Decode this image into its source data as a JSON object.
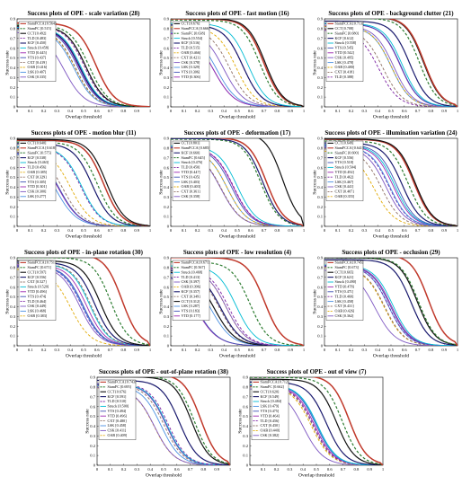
{
  "figure": {
    "xlabel": "Overlap threshold",
    "ylabel": "Success rate",
    "x_ticks": [
      "0",
      "0.1",
      "0.2",
      "0.3",
      "0.4",
      "0.5",
      "0.6",
      "0.7",
      "0.8",
      "0.9",
      "1"
    ],
    "y_ticks": [
      "0",
      "0.1",
      "0.2",
      "0.3",
      "0.4",
      "0.5",
      "0.6",
      "0.7",
      "0.8",
      "0.9"
    ]
  },
  "series_styles": {
    "SiamFCCA": {
      "color": "#c0392b",
      "dash": "solid",
      "width": 1.5
    },
    "SiamFC": {
      "color": "#2e7d32",
      "dash": "dashed",
      "width": 1.2
    },
    "CCT": {
      "color": "#111111",
      "dash": "solid",
      "width": 1.2
    },
    "TLD": {
      "color": "#7b1fa2",
      "dash": "dashed",
      "width": 0.9
    },
    "KCF": {
      "color": "#1a1a6e",
      "dash": "solid",
      "width": 1.2
    },
    "Struck": {
      "color": "#00bcd4",
      "dash": "solid",
      "width": 0.9
    },
    "VTD": {
      "color": "#9c27b0",
      "dash": "solid",
      "width": 0.9
    },
    "CXT": {
      "color": "#8d6e63",
      "dash": "dashed",
      "width": 0.9
    },
    "VTS": {
      "color": "#3f51b5",
      "dash": "solid",
      "width": 0.9
    },
    "OAB": {
      "color": "#e1a900",
      "dash": "dashed",
      "width": 0.9
    },
    "CSK": {
      "color": "#7e57c2",
      "dash": "solid",
      "width": 0.9
    },
    "LSK": {
      "color": "#4a90e2",
      "dash": "solid",
      "width": 0.9
    }
  },
  "chart_data": [
    {
      "type": "line",
      "title": "Success plots of OPE - scale variation (28)",
      "xlabel": "Overlap threshold",
      "ylabel": "Success rate",
      "xlim": [
        0,
        1
      ],
      "ylim": [
        0,
        0.9
      ],
      "legend_position": "left",
      "series": [
        {
          "name": "SiamFCCA",
          "label": "SiamFCCA [0.564]",
          "auc": 0.564
        },
        {
          "name": "SiamFC",
          "label": "SiamFC [0.515]",
          "auc": 0.515
        },
        {
          "name": "CCT",
          "label": "CCT [0.492]",
          "auc": 0.492
        },
        {
          "name": "TLD",
          "label": "TLD [0.483]",
          "auc": 0.483
        },
        {
          "name": "KCF",
          "label": "KCF [0.450]",
          "auc": 0.45
        },
        {
          "name": "Struck",
          "label": "Struck [0.458]",
          "auc": 0.458
        },
        {
          "name": "VTD",
          "label": "VTD [0.445]",
          "auc": 0.445
        },
        {
          "name": "VTS",
          "label": "VTS [0.437]",
          "auc": 0.437
        },
        {
          "name": "CXT",
          "label": "CXT [0.419]",
          "auc": 0.419
        },
        {
          "name": "OAB",
          "label": "OAB [0.416]",
          "auc": 0.416
        },
        {
          "name": "LSK",
          "label": "LSK [0.407]",
          "auc": 0.407
        },
        {
          "name": "CSK",
          "label": "CSK [0.335]",
          "auc": 0.335
        }
      ]
    },
    {
      "type": "line",
      "title": "Success plots of OPE - fast motion (16)",
      "xlabel": "Overlap threshold",
      "ylabel": "Success rate",
      "xlim": [
        0,
        1
      ],
      "ylim": [
        0,
        0.9
      ],
      "legend_position": "left",
      "series": [
        {
          "name": "CCT",
          "label": "CCT [0.676]",
          "auc": 0.676
        },
        {
          "name": "SiamFCCA",
          "label": "SiamFCCA [0.666]",
          "auc": 0.666
        },
        {
          "name": "SiamFC",
          "label": "SiamFC [0.638]",
          "auc": 0.638
        },
        {
          "name": "Struck",
          "label": "Struck [0.554]",
          "auc": 0.554
        },
        {
          "name": "KCF",
          "label": "KCF [0.516]",
          "auc": 0.516
        },
        {
          "name": "TLD",
          "label": "TLD [0.515]",
          "auc": 0.515
        },
        {
          "name": "OAB",
          "label": "OAB [0.466]",
          "auc": 0.466
        },
        {
          "name": "CXT",
          "label": "CXT [0.421]",
          "auc": 0.421
        },
        {
          "name": "CSK",
          "label": "CSK [0.378]",
          "auc": 0.378
        },
        {
          "name": "LSK",
          "label": "LSK [0.329]",
          "auc": 0.329
        },
        {
          "name": "VTS",
          "label": "VTS [0.306]",
          "auc": 0.306
        },
        {
          "name": "VTD",
          "label": "VTD [0.306]",
          "auc": 0.306
        }
      ]
    },
    {
      "type": "line",
      "title": "Success plots of OPE - background clutter (21)",
      "xlabel": "Overlap threshold",
      "ylabel": "Success rate",
      "xlim": [
        0,
        1
      ],
      "ylim": [
        0,
        0.9
      ],
      "legend_position": "left",
      "series": [
        {
          "name": "SiamFCCA",
          "label": "SiamFCCA [0.713]",
          "auc": 0.713
        },
        {
          "name": "CCT",
          "label": "CCT [0.708]",
          "auc": 0.708
        },
        {
          "name": "SiamFC",
          "label": "SiamFC [0.680]",
          "auc": 0.68
        },
        {
          "name": "KCF",
          "label": "KCF [0.612]",
          "auc": 0.612
        },
        {
          "name": "Struck",
          "label": "Struck [0.558]",
          "auc": 0.558
        },
        {
          "name": "VTS",
          "label": "VTS [0.545]",
          "auc": 0.545
        },
        {
          "name": "VTD",
          "label": "VTD [0.542]",
          "auc": 0.542
        },
        {
          "name": "CSK",
          "label": "CSK [0.495]",
          "auc": 0.495
        },
        {
          "name": "LSK",
          "label": "LSK [0.478]",
          "auc": 0.478
        },
        {
          "name": "OAB",
          "label": "OAB [0.480]",
          "auc": 0.48
        },
        {
          "name": "CXT",
          "label": "CXT [0.418]",
          "auc": 0.418
        },
        {
          "name": "TLD",
          "label": "TLD [0.388]",
          "auc": 0.388
        }
      ]
    },
    {
      "type": "line",
      "title": "Success plots of OPE - motion blur (11)",
      "xlabel": "Overlap threshold",
      "ylabel": "Success rate",
      "xlim": [
        0,
        1
      ],
      "ylim": [
        0,
        0.9
      ],
      "legend_position": "left",
      "series": [
        {
          "name": "CCT",
          "label": "CCT [0.640]",
          "auc": 0.64
        },
        {
          "name": "SiamFCCA",
          "label": "SiamFCCA [0.618]",
          "auc": 0.618
        },
        {
          "name": "SiamFC",
          "label": "SiamFC [0.575]",
          "auc": 0.575
        },
        {
          "name": "KCF",
          "label": "KCF [0.538]",
          "auc": 0.538
        },
        {
          "name": "Struck",
          "label": "Struck [0.463]",
          "auc": 0.463
        },
        {
          "name": "TLD",
          "label": "TLD [0.456]",
          "auc": 0.456
        },
        {
          "name": "OAB",
          "label": "OAB [0.385]",
          "auc": 0.385
        },
        {
          "name": "CXT",
          "label": "CXT [0.329]",
          "auc": 0.329
        },
        {
          "name": "VTS",
          "label": "VTS [0.305]",
          "auc": 0.305
        },
        {
          "name": "VTD",
          "label": "VTD [0.301]",
          "auc": 0.301
        },
        {
          "name": "CSK",
          "label": "CSK [0.300]",
          "auc": 0.3
        },
        {
          "name": "LSK",
          "label": "LSK [0.277]",
          "auc": 0.277
        }
      ]
    },
    {
      "type": "line",
      "title": "Success plots of OPE - deformation (17)",
      "xlabel": "Overlap threshold",
      "ylabel": "Success rate",
      "xlim": [
        0,
        1
      ],
      "ylim": [
        0,
        0.9
      ],
      "legend_position": "left",
      "series": [
        {
          "name": "CCT",
          "label": "CCT [0.801]",
          "auc": 0.801
        },
        {
          "name": "SiamFCCA",
          "label": "SiamFCCA [0.685]",
          "auc": 0.685
        },
        {
          "name": "KCF",
          "label": "KCF [0.660]",
          "auc": 0.66
        },
        {
          "name": "SiamFC",
          "label": "SiamFC [0.645]",
          "auc": 0.645
        },
        {
          "name": "Struck",
          "label": "Struck [0.476]",
          "auc": 0.476
        },
        {
          "name": "TLD",
          "label": "TLD [0.450]",
          "auc": 0.45
        },
        {
          "name": "VTD",
          "label": "VTD [0.447]",
          "auc": 0.447
        },
        {
          "name": "VTS",
          "label": "VTS [0.435]",
          "auc": 0.435
        },
        {
          "name": "LSK",
          "label": "LSK [0.403]",
          "auc": 0.403
        },
        {
          "name": "OAB",
          "label": "OAB [0.403]",
          "auc": 0.403
        },
        {
          "name": "CXT",
          "label": "CXT [0.361]",
          "auc": 0.361
        },
        {
          "name": "CSK",
          "label": "CSK [0.358]",
          "auc": 0.358
        }
      ]
    },
    {
      "type": "line",
      "title": "Success plots of OPE - illumination variation (24)",
      "xlabel": "Overlap threshold",
      "ylabel": "Success rate",
      "xlim": [
        0,
        1
      ],
      "ylim": [
        0,
        0.9
      ],
      "legend_position": "left",
      "series": [
        {
          "name": "CCT",
          "label": "CCT [0.649]",
          "auc": 0.649
        },
        {
          "name": "SiamFCCA",
          "label": "SiamFCCA [0.641]",
          "auc": 0.641
        },
        {
          "name": "SiamFC",
          "label": "SiamFC [0.600]",
          "auc": 0.6
        },
        {
          "name": "KCF",
          "label": "KCF [0.556]",
          "auc": 0.556
        },
        {
          "name": "VTS",
          "label": "VTS [0.518]",
          "auc": 0.518
        },
        {
          "name": "Struck",
          "label": "Struck [0.504]",
          "auc": 0.504
        },
        {
          "name": "VTD",
          "label": "VTD [0.492]",
          "auc": 0.492
        },
        {
          "name": "TLD",
          "label": "TLD [0.462]",
          "auc": 0.462
        },
        {
          "name": "LSK",
          "label": "LSK [0.467]",
          "auc": 0.467
        },
        {
          "name": "CSK",
          "label": "CSK [0.441]",
          "auc": 0.441
        },
        {
          "name": "CXT",
          "label": "CXT [0.407]",
          "auc": 0.407
        },
        {
          "name": "OAB",
          "label": "OAB [0.355]",
          "auc": 0.355
        }
      ]
    },
    {
      "type": "line",
      "title": "Success plots of OPE - in-plane rotation (30)",
      "xlabel": "Overlap threshold",
      "ylabel": "Success rate",
      "xlim": [
        0,
        1
      ],
      "ylim": [
        0,
        0.9
      ],
      "legend_position": "left",
      "series": [
        {
          "name": "SiamFCCA",
          "label": "SiamFCCA [0.751]",
          "auc": 0.751
        },
        {
          "name": "SiamFC",
          "label": "SiamFC [0.671]",
          "auc": 0.671
        },
        {
          "name": "CCT",
          "label": "CCT [0.597]",
          "auc": 0.597
        },
        {
          "name": "KCF",
          "label": "KCF [0.556]",
          "auc": 0.556
        },
        {
          "name": "CXT",
          "label": "CXT [0.527]",
          "auc": 0.527
        },
        {
          "name": "Struck",
          "label": "Struck [0.520]",
          "auc": 0.52
        },
        {
          "name": "VTD",
          "label": "VTD [0.496]",
          "auc": 0.496
        },
        {
          "name": "VTS",
          "label": "VTS [0.474]",
          "auc": 0.474
        },
        {
          "name": "TLD",
          "label": "TLD [0.464]",
          "auc": 0.464
        },
        {
          "name": "CSK",
          "label": "CSK [0.449]",
          "auc": 0.449
        },
        {
          "name": "LSK",
          "label": "LSK [0.468]",
          "auc": 0.468
        },
        {
          "name": "OAB",
          "label": "OAB [0.383]",
          "auc": 0.383
        }
      ]
    },
    {
      "type": "line",
      "title": "Success plots of OPE - low resolution (4)",
      "xlabel": "Overlap threshold",
      "ylabel": "Success rate",
      "xlim": [
        0,
        1
      ],
      "ylim": [
        0,
        0.9
      ],
      "legend_position": "left",
      "series": [
        {
          "name": "SiamFCCA",
          "label": "SiamFCCA [0.671]",
          "auc": 0.671
        },
        {
          "name": "SiamFC",
          "label": "SiamFC [0.567]",
          "auc": 0.567
        },
        {
          "name": "Struck",
          "label": "Struck [0.468]",
          "auc": 0.468
        },
        {
          "name": "TLD",
          "label": "TLD [0.413]",
          "auc": 0.413
        },
        {
          "name": "CSK",
          "label": "CSK [0.397]",
          "auc": 0.397
        },
        {
          "name": "OAB",
          "label": "OAB [0.396]",
          "auc": 0.396
        },
        {
          "name": "KCF",
          "label": "KCF [0.357]",
          "auc": 0.357
        },
        {
          "name": "CXT",
          "label": "CXT [0.349]",
          "auc": 0.349
        },
        {
          "name": "CCT",
          "label": "CCT [0.312]",
          "auc": 0.312
        },
        {
          "name": "LSK",
          "label": "LSK [0.287]",
          "auc": 0.287
        },
        {
          "name": "VTS",
          "label": "VTS [0.183]",
          "auc": 0.183
        },
        {
          "name": "VTD",
          "label": "VTD [0.177]",
          "auc": 0.177
        }
      ]
    },
    {
      "type": "line",
      "title": "Success plots of OPE - occlusion (29)",
      "xlabel": "Overlap threshold",
      "ylabel": "Success rate",
      "xlim": [
        0,
        1
      ],
      "ylim": [
        0,
        0.9
      ],
      "legend_position": "left",
      "series": [
        {
          "name": "SiamFCCA",
          "label": "SiamFCCA [0.745]",
          "auc": 0.745
        },
        {
          "name": "SiamFC",
          "label": "SiamFC [0.673]",
          "auc": 0.673
        },
        {
          "name": "CCT",
          "label": "CCT [0.665]",
          "auc": 0.665
        },
        {
          "name": "KCF",
          "label": "KCF [0.621]",
          "auc": 0.621
        },
        {
          "name": "Struck",
          "label": "Struck [0.490]",
          "auc": 0.49
        },
        {
          "name": "VTD",
          "label": "VTD [0.478]",
          "auc": 0.478
        },
        {
          "name": "VTS",
          "label": "VTS [0.471]",
          "auc": 0.471
        },
        {
          "name": "TLD",
          "label": "TLD [0.460]",
          "auc": 0.46
        },
        {
          "name": "LSK",
          "label": "LSK [0.458]",
          "auc": 0.458
        },
        {
          "name": "CXT",
          "label": "CXT [0.431]",
          "auc": 0.431
        },
        {
          "name": "OAB",
          "label": "OAB [0.426]",
          "auc": 0.426
        },
        {
          "name": "CSK",
          "label": "CSK [0.362]",
          "auc": 0.362
        }
      ]
    },
    {
      "type": "line",
      "title": "Success plots of OPE - out-of-plane rotation (38)",
      "xlabel": "Overlap threshold",
      "ylabel": "Success rate",
      "xlim": [
        0,
        1
      ],
      "ylim": [
        0,
        0.9
      ],
      "legend_position": "left",
      "series": [
        {
          "name": "SiamFCCA",
          "label": "SiamFCCA [0.743]",
          "auc": 0.743
        },
        {
          "name": "SiamFC",
          "label": "SiamFC [0.695]",
          "auc": 0.695
        },
        {
          "name": "CCT",
          "label": "CCT [0.676]",
          "auc": 0.676
        },
        {
          "name": "KCF",
          "label": "KCF [0.591]",
          "auc": 0.591
        },
        {
          "name": "TLD",
          "label": "TLD [0.510]",
          "auc": 0.51
        },
        {
          "name": "Struck",
          "label": "Struck [0.500]",
          "auc": 0.5
        },
        {
          "name": "VTS",
          "label": "VTS [0.494]",
          "auc": 0.494
        },
        {
          "name": "VTD",
          "label": "VTD [0.496]",
          "auc": 0.496
        },
        {
          "name": "CXT",
          "label": "CXT [0.480]",
          "auc": 0.48
        },
        {
          "name": "LSK",
          "label": "LSK [0.458]",
          "auc": 0.458
        },
        {
          "name": "CSK",
          "label": "CSK [0.411]",
          "auc": 0.411
        },
        {
          "name": "OAB",
          "label": "OAB [0.409]",
          "auc": 0.409
        }
      ]
    },
    {
      "type": "line",
      "title": "Success plots of OPE - out of view (7)",
      "xlabel": "Overlap threshold",
      "ylabel": "Success rate",
      "xlim": [
        0,
        1
      ],
      "ylim": [
        0,
        0.9
      ],
      "legend_position": "left",
      "series": [
        {
          "name": "SiamFCCA",
          "label": "SiamFCCA [0.712]",
          "auc": 0.712
        },
        {
          "name": "SiamFC",
          "label": "SiamFC [0.662]",
          "auc": 0.662
        },
        {
          "name": "CCT",
          "label": "CCT [0.620]",
          "auc": 0.62
        },
        {
          "name": "KCF",
          "label": "KCF [0.549]",
          "auc": 0.549
        },
        {
          "name": "Struck",
          "label": "Struck [0.484]",
          "auc": 0.484
        },
        {
          "name": "LSK",
          "label": "LSK [0.479]",
          "auc": 0.479
        },
        {
          "name": "VTS",
          "label": "VTS [0.475]",
          "auc": 0.475
        },
        {
          "name": "VTD",
          "label": "VTD [0.464]",
          "auc": 0.464
        },
        {
          "name": "TLD",
          "label": "TLD [0.456]",
          "auc": 0.456
        },
        {
          "name": "CXT",
          "label": "CXT [0.450]",
          "auc": 0.45
        },
        {
          "name": "OAB",
          "label": "OAB [0.440]",
          "auc": 0.44
        },
        {
          "name": "CSK",
          "label": "CSK [0.382]",
          "auc": 0.382
        }
      ]
    }
  ]
}
